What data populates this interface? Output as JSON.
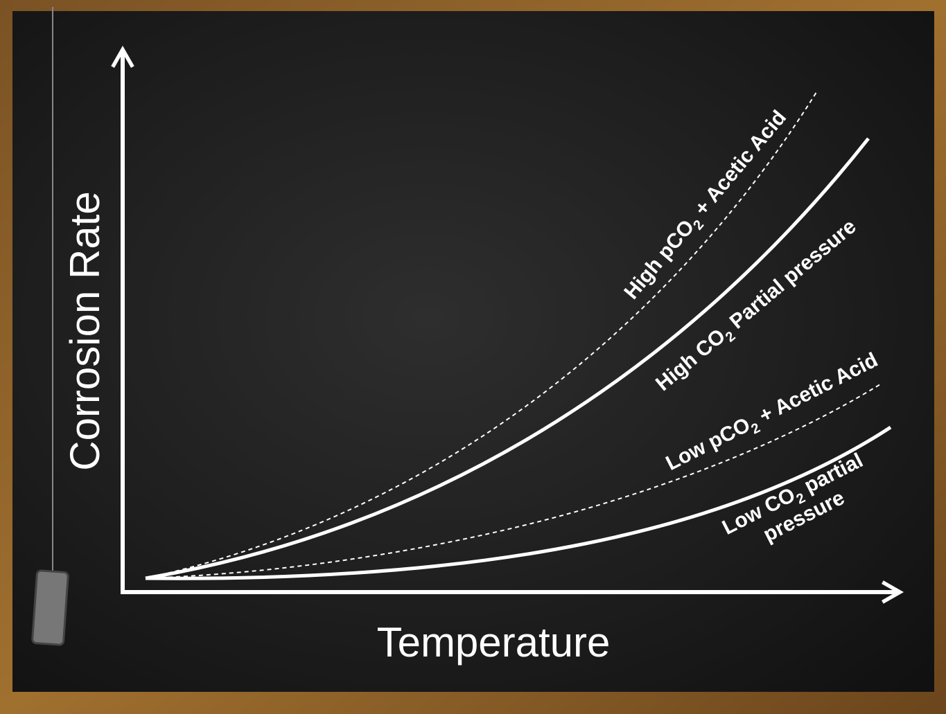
{
  "y_axis_title": "Corrosion Rate",
  "x_axis_title": "Temperature",
  "curve_labels": [
    {
      "lines": [
        [
          "High pCO",
          "2",
          " + Acetic Acid"
        ]
      ]
    },
    {
      "lines": [
        [
          "High CO",
          "2",
          " Partial pressure"
        ]
      ]
    },
    {
      "lines": [
        [
          "Low pCO",
          "2",
          " + Acetic Acid"
        ]
      ]
    },
    {
      "lines": [
        [
          "Low CO",
          "2",
          " partial"
        ],
        [
          "pressure"
        ]
      ]
    }
  ]
}
